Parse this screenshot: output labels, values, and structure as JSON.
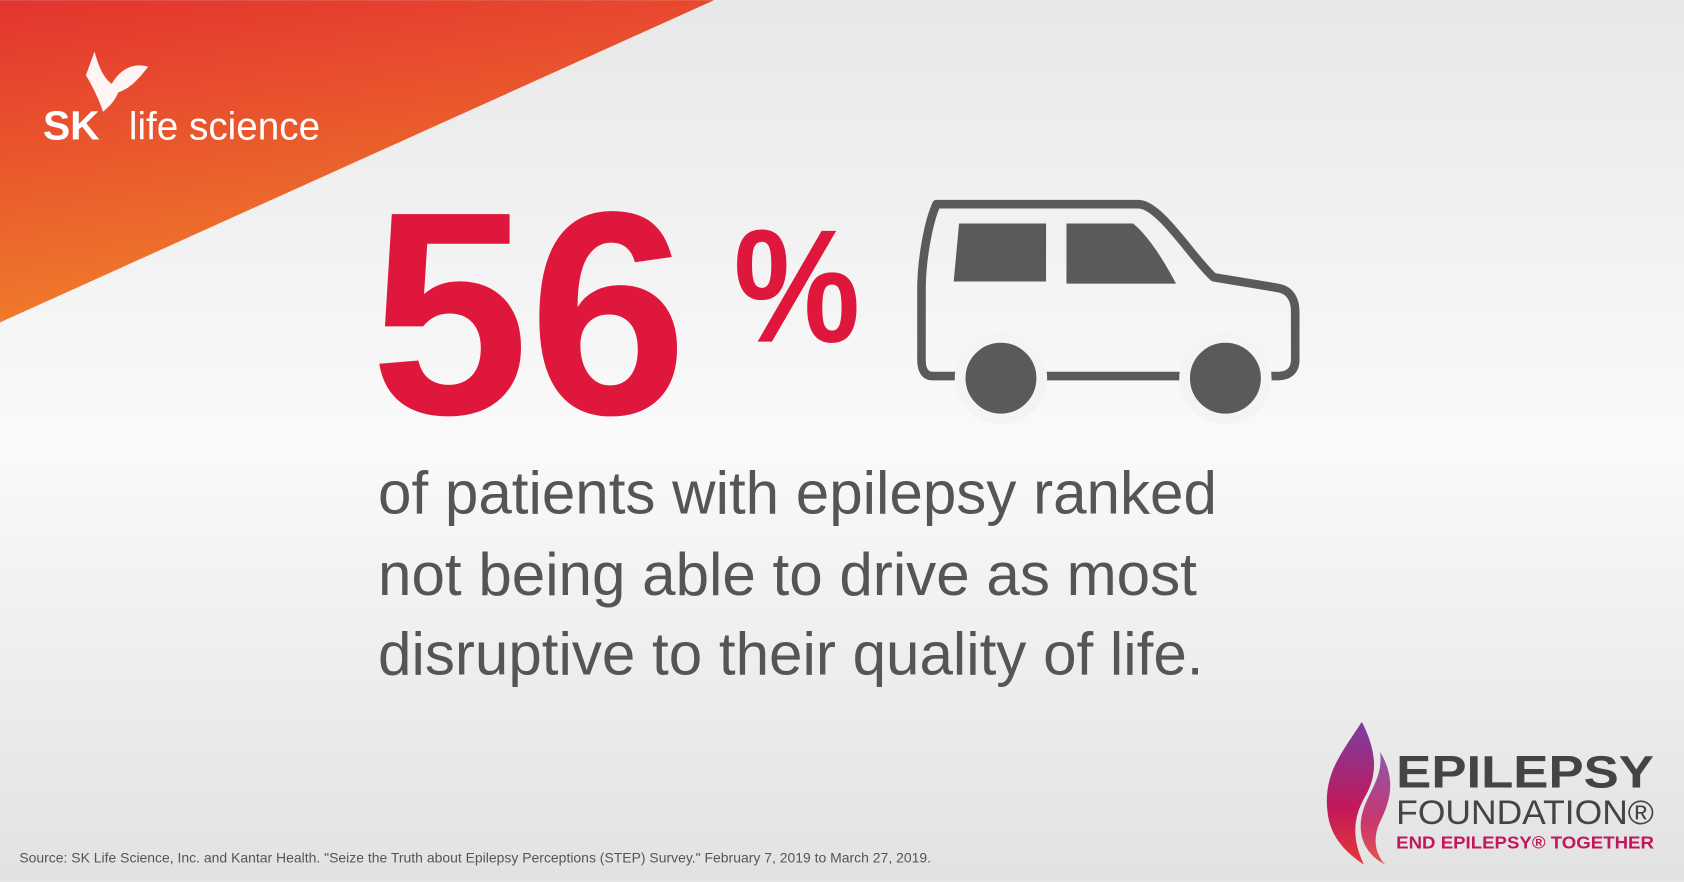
{
  "logo": {
    "brand": "SK",
    "name": "life science"
  },
  "stat": {
    "number": "56",
    "symbol": "%"
  },
  "description": [
    "of patients with epilepsy ranked",
    "not being able to drive as most",
    "disruptive to their quality of life."
  ],
  "source": "Source: SK Life Science, Inc. and Kantar Health. \"Seize the Truth about Epilepsy Perceptions (STEP) Survey.\" February 7, 2019 to March 27, 2019.",
  "partner": {
    "name": "EPILEPSY",
    "subtitle": "FOUNDATION®",
    "tagline": "END EPILEPSY® TOGETHER"
  }
}
